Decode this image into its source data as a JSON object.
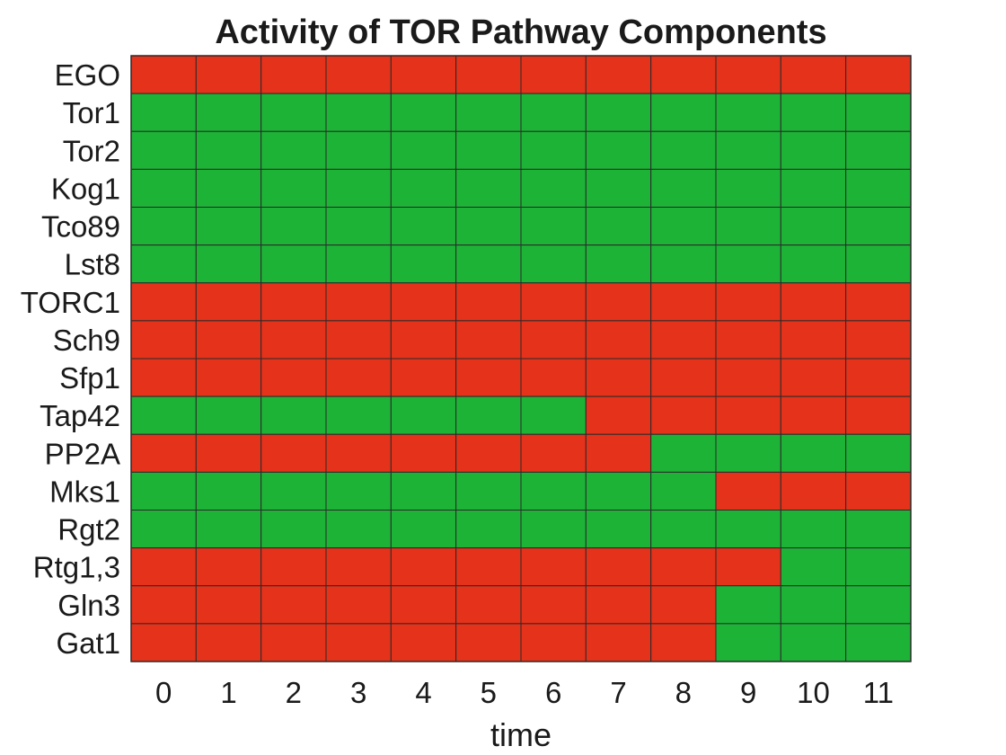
{
  "chart_data": {
    "type": "heatmap",
    "title": "Activity of TOR Pathway Components",
    "xlabel": "time",
    "ylabel": "",
    "x": [
      "0",
      "1",
      "2",
      "3",
      "4",
      "5",
      "6",
      "7",
      "8",
      "9",
      "10",
      "11"
    ],
    "y": [
      "EGO",
      "Tor1",
      "Tor2",
      "Kog1",
      "Tco89",
      "Lst8",
      "TORC1",
      "Sch9",
      "Sfp1",
      "Tap42",
      "PP2A",
      "Mks1",
      "Rgt2",
      "Rtg1,3",
      "Gln3",
      "Gat1"
    ],
    "values": [
      [
        0,
        0,
        0,
        0,
        0,
        0,
        0,
        0,
        0,
        0,
        0,
        0
      ],
      [
        1,
        1,
        1,
        1,
        1,
        1,
        1,
        1,
        1,
        1,
        1,
        1
      ],
      [
        1,
        1,
        1,
        1,
        1,
        1,
        1,
        1,
        1,
        1,
        1,
        1
      ],
      [
        1,
        1,
        1,
        1,
        1,
        1,
        1,
        1,
        1,
        1,
        1,
        1
      ],
      [
        1,
        1,
        1,
        1,
        1,
        1,
        1,
        1,
        1,
        1,
        1,
        1
      ],
      [
        1,
        1,
        1,
        1,
        1,
        1,
        1,
        1,
        1,
        1,
        1,
        1
      ],
      [
        0,
        0,
        0,
        0,
        0,
        0,
        0,
        0,
        0,
        0,
        0,
        0
      ],
      [
        0,
        0,
        0,
        0,
        0,
        0,
        0,
        0,
        0,
        0,
        0,
        0
      ],
      [
        0,
        0,
        0,
        0,
        0,
        0,
        0,
        0,
        0,
        0,
        0,
        0
      ],
      [
        1,
        1,
        1,
        1,
        1,
        1,
        1,
        0,
        0,
        0,
        0,
        0
      ],
      [
        0,
        0,
        0,
        0,
        0,
        0,
        0,
        0,
        1,
        1,
        1,
        1
      ],
      [
        1,
        1,
        1,
        1,
        1,
        1,
        1,
        1,
        1,
        0,
        0,
        0
      ],
      [
        1,
        1,
        1,
        1,
        1,
        1,
        1,
        1,
        1,
        1,
        1,
        1
      ],
      [
        0,
        0,
        0,
        0,
        0,
        0,
        0,
        0,
        0,
        0,
        1,
        1
      ],
      [
        0,
        0,
        0,
        0,
        0,
        0,
        0,
        0,
        0,
        1,
        1,
        1
      ],
      [
        0,
        0,
        0,
        0,
        0,
        0,
        0,
        0,
        0,
        1,
        1,
        1
      ]
    ],
    "colors": {
      "0": "#e4321b",
      "1": "#1db337"
    },
    "grid_color": "#2a2a2a",
    "grid": true,
    "legend": "none"
  }
}
